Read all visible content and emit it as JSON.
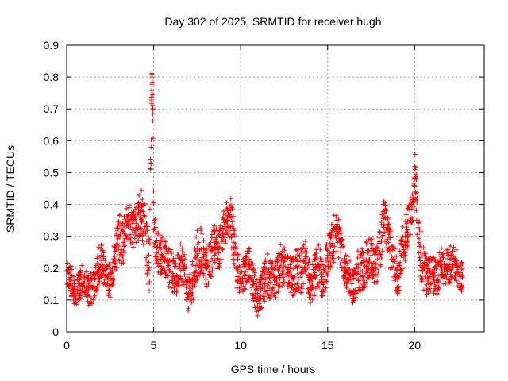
{
  "chart_data": {
    "type": "scatter",
    "title": "Day 302 of 2025, SRMTID for receiver hugh",
    "xlabel": "GPS time / hours",
    "ylabel": "SRMTID / TECUs",
    "xlim": [
      0,
      24
    ],
    "ylim": [
      0,
      0.9
    ],
    "x_ticks": [
      0,
      5,
      10,
      15,
      20
    ],
    "x_tick_labels": [
      "0",
      "5",
      "10",
      "15",
      "20"
    ],
    "y_ticks": [
      0,
      0.1,
      0.2,
      0.3,
      0.4,
      0.5,
      0.6,
      0.7,
      0.8,
      0.9
    ],
    "y_tick_labels": [
      "0",
      "0.1",
      "0.2",
      "0.3",
      "0.4",
      "0.5",
      "0.6",
      "0.7",
      "0.8",
      "0.9"
    ],
    "grid": true,
    "marker": "plus",
    "color": "#ff0000",
    "series": [
      {
        "name": "SRMTID",
        "x": [
          0.0,
          0.25,
          0.5,
          0.75,
          1.0,
          1.25,
          1.5,
          1.75,
          2.0,
          2.25,
          2.5,
          2.75,
          3.0,
          3.25,
          3.5,
          3.75,
          4.0,
          4.25,
          4.5,
          4.75,
          4.85,
          4.9,
          4.95,
          5.0,
          5.25,
          5.5,
          5.75,
          6.0,
          6.25,
          6.5,
          6.75,
          7.0,
          7.25,
          7.5,
          7.75,
          8.0,
          8.25,
          8.5,
          8.75,
          9.0,
          9.25,
          9.5,
          9.75,
          10.0,
          10.25,
          10.5,
          10.75,
          11.0,
          11.25,
          11.5,
          11.75,
          12.0,
          12.25,
          12.5,
          12.75,
          13.0,
          13.25,
          13.5,
          13.75,
          14.0,
          14.25,
          14.5,
          14.75,
          15.0,
          15.25,
          15.5,
          15.75,
          16.0,
          16.25,
          16.5,
          16.75,
          17.0,
          17.25,
          17.5,
          17.75,
          18.0,
          18.25,
          18.5,
          18.75,
          19.0,
          19.25,
          19.5,
          19.75,
          19.95,
          20.0,
          20.25,
          20.5,
          20.75,
          21.0,
          21.25,
          21.5,
          21.75,
          22.0,
          22.25,
          22.5,
          22.75
        ],
        "y": [
          0.19,
          0.16,
          0.12,
          0.15,
          0.17,
          0.13,
          0.14,
          0.18,
          0.24,
          0.17,
          0.16,
          0.22,
          0.3,
          0.28,
          0.36,
          0.32,
          0.34,
          0.38,
          0.33,
          0.2,
          0.58,
          0.8,
          0.7,
          0.32,
          0.25,
          0.24,
          0.22,
          0.19,
          0.16,
          0.21,
          0.2,
          0.12,
          0.15,
          0.24,
          0.26,
          0.2,
          0.22,
          0.28,
          0.25,
          0.3,
          0.38,
          0.33,
          0.2,
          0.16,
          0.18,
          0.22,
          0.15,
          0.1,
          0.14,
          0.18,
          0.17,
          0.16,
          0.2,
          0.22,
          0.19,
          0.17,
          0.2,
          0.19,
          0.23,
          0.16,
          0.18,
          0.21,
          0.15,
          0.24,
          0.27,
          0.32,
          0.25,
          0.2,
          0.17,
          0.13,
          0.2,
          0.19,
          0.22,
          0.24,
          0.2,
          0.25,
          0.36,
          0.28,
          0.22,
          0.17,
          0.24,
          0.3,
          0.36,
          0.42,
          0.52,
          0.28,
          0.2,
          0.17,
          0.19,
          0.16,
          0.22,
          0.2,
          0.21,
          0.23,
          0.19,
          0.17
        ],
        "spread": [
          0.04,
          0.05,
          0.04,
          0.05,
          0.06,
          0.05,
          0.05,
          0.06,
          0.08,
          0.05,
          0.06,
          0.06,
          0.08,
          0.07,
          0.06,
          0.06,
          0.07,
          0.08,
          0.08,
          0.1,
          0.05,
          0.03,
          0.05,
          0.07,
          0.07,
          0.06,
          0.06,
          0.07,
          0.05,
          0.07,
          0.06,
          0.06,
          0.08,
          0.08,
          0.07,
          0.06,
          0.06,
          0.07,
          0.06,
          0.07,
          0.07,
          0.08,
          0.07,
          0.05,
          0.06,
          0.06,
          0.06,
          0.06,
          0.06,
          0.07,
          0.07,
          0.06,
          0.07,
          0.07,
          0.06,
          0.06,
          0.07,
          0.07,
          0.07,
          0.07,
          0.07,
          0.07,
          0.06,
          0.07,
          0.08,
          0.07,
          0.07,
          0.06,
          0.06,
          0.06,
          0.07,
          0.07,
          0.07,
          0.07,
          0.06,
          0.07,
          0.06,
          0.07,
          0.07,
          0.07,
          0.07,
          0.07,
          0.06,
          0.05,
          0.06,
          0.08,
          0.07,
          0.06,
          0.06,
          0.06,
          0.07,
          0.06,
          0.06,
          0.06,
          0.05,
          0.05
        ]
      }
    ]
  }
}
